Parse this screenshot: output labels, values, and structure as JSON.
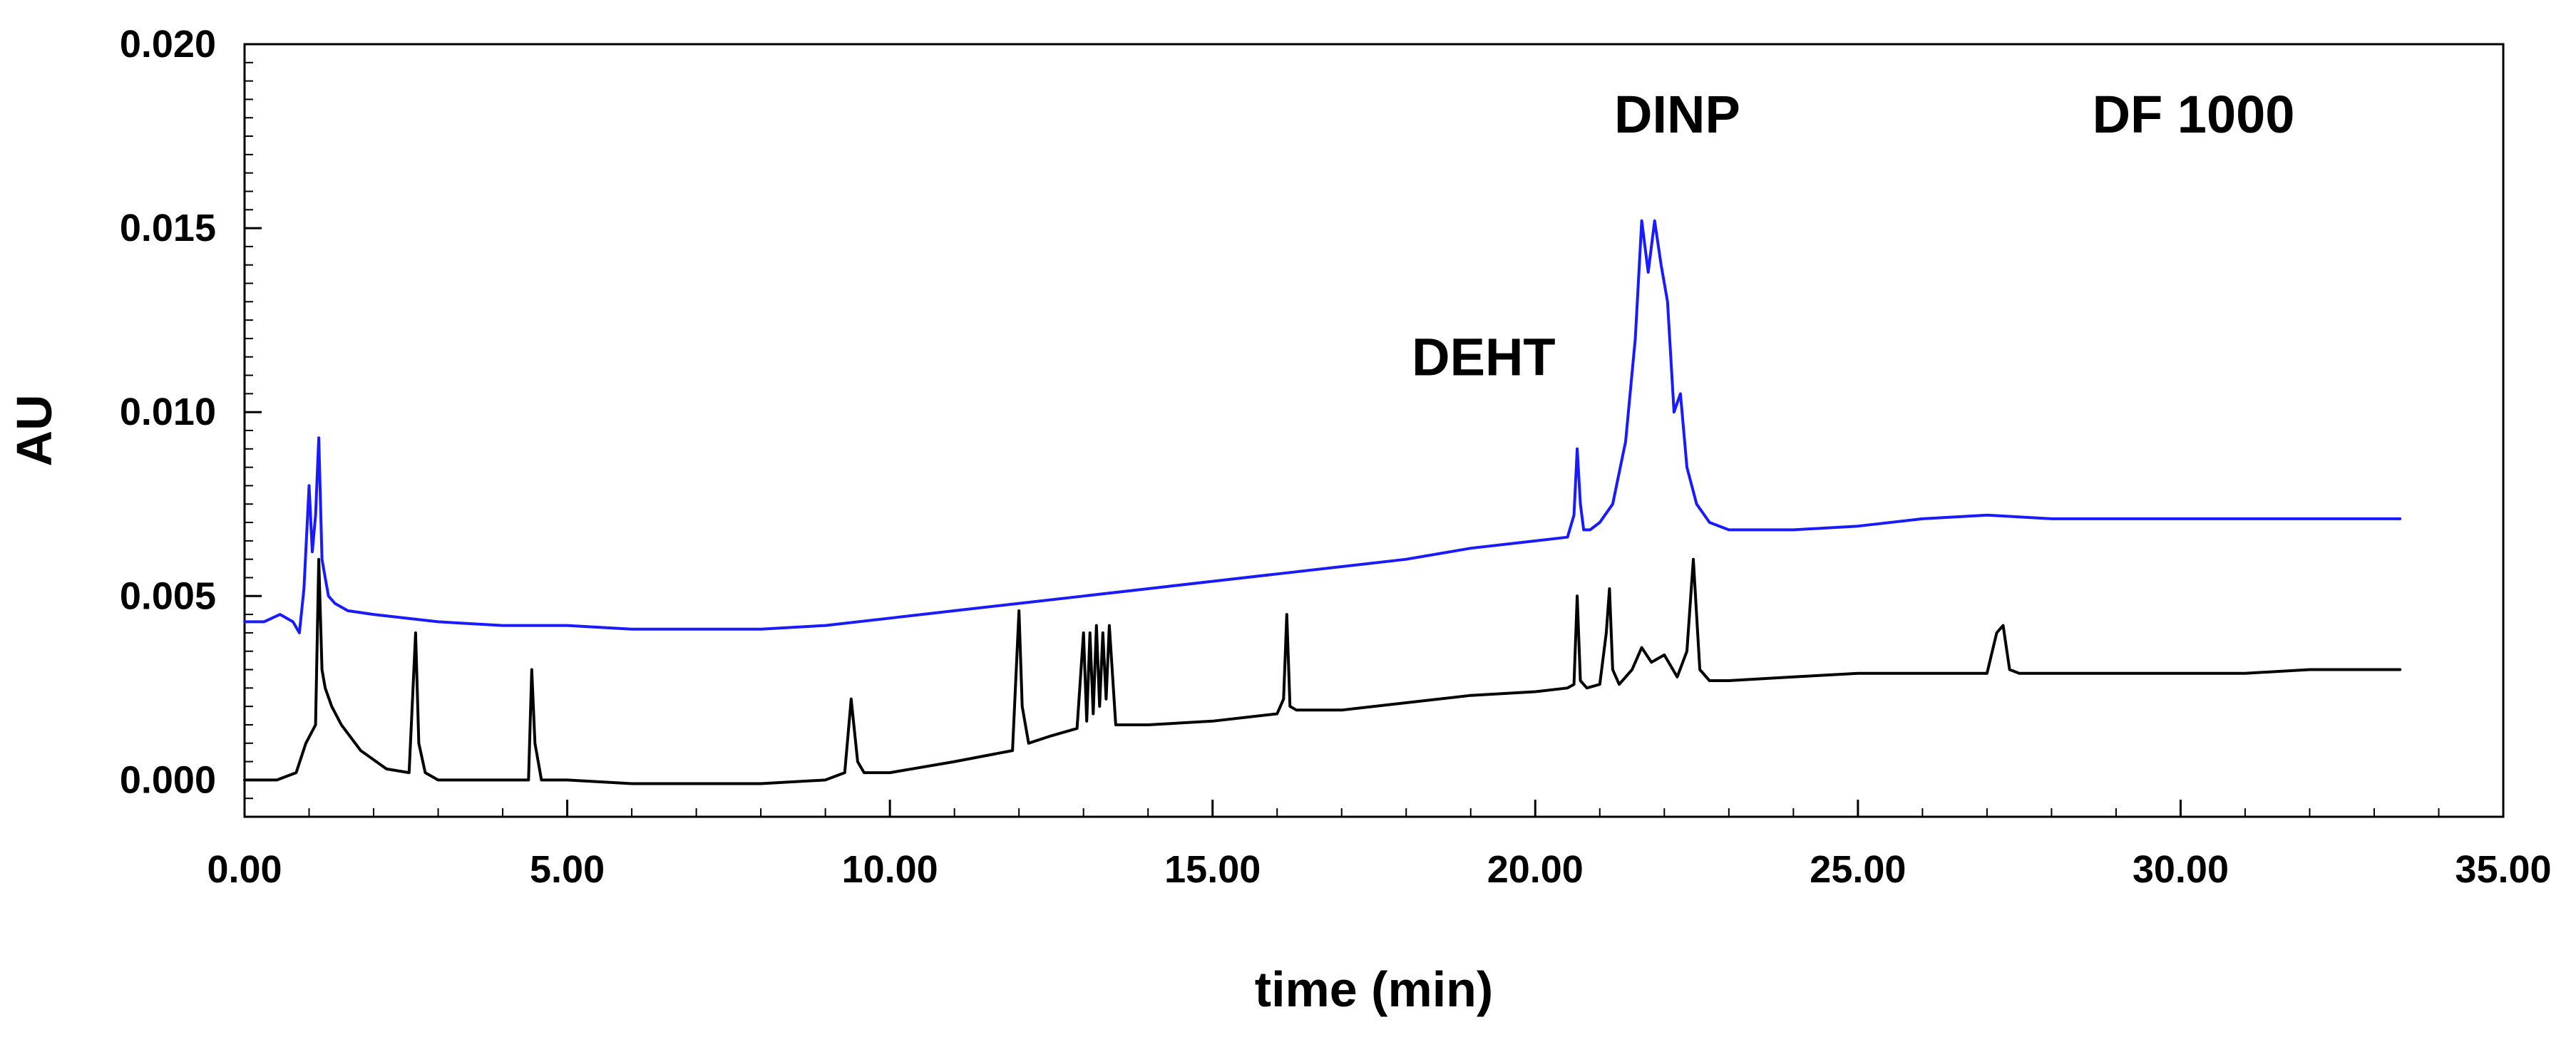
{
  "chart_data": {
    "type": "line",
    "title": "",
    "xlabel": "time (min)",
    "ylabel": "AU",
    "xlim": [
      0,
      35
    ],
    "ylim": [
      -0.001,
      0.02
    ],
    "x_ticks": [
      0,
      5,
      10,
      15,
      20,
      25,
      30,
      35
    ],
    "x_tick_labels": [
      "0.00",
      "5.00",
      "10.00",
      "15.00",
      "20.00",
      "25.00",
      "30.00",
      "35.00"
    ],
    "y_ticks": [
      0,
      0.005,
      0.01,
      0.015,
      0.02
    ],
    "y_tick_labels": [
      "0.000",
      "0.005",
      "0.010",
      "0.015",
      "0.020"
    ],
    "grid": false,
    "legend": "none",
    "annotations": [
      {
        "text": "DEHT",
        "x": 19.2,
        "y": 0.011
      },
      {
        "text": "DINP",
        "x": 22.2,
        "y": 0.0176
      },
      {
        "text": "DF 1000",
        "x": 30.2,
        "y": 0.0176
      }
    ],
    "series": [
      {
        "color": "#1a1aff",
        "x": [
          0.0,
          0.3,
          0.55,
          0.75,
          0.85,
          0.92,
          1.0,
          1.05,
          1.1,
          1.15,
          1.2,
          1.25,
          1.3,
          1.4,
          1.6,
          2.0,
          3.0,
          4.0,
          5.0,
          6.0,
          7.0,
          8.0,
          9.0,
          10.0,
          11.0,
          12.0,
          13.0,
          14.0,
          15.0,
          16.0,
          17.0,
          18.0,
          19.0,
          20.0,
          20.5,
          20.6,
          20.65,
          20.7,
          20.75,
          20.85,
          21.0,
          21.2,
          21.4,
          21.55,
          21.65,
          21.75,
          21.85,
          21.95,
          22.05,
          22.15,
          22.25,
          22.35,
          22.5,
          22.7,
          23.0,
          23.5,
          24.0,
          25.0,
          26.0,
          27.0,
          28.0,
          29.0,
          30.0,
          31.0,
          32.0,
          33.0,
          33.4
        ],
        "y": [
          0.0043,
          0.0043,
          0.0045,
          0.0043,
          0.004,
          0.0052,
          0.008,
          0.0062,
          0.0072,
          0.0093,
          0.006,
          0.0055,
          0.005,
          0.0048,
          0.0046,
          0.0045,
          0.0043,
          0.0042,
          0.0042,
          0.0041,
          0.0041,
          0.0041,
          0.0042,
          0.0044,
          0.0046,
          0.0048,
          0.005,
          0.0052,
          0.0054,
          0.0056,
          0.0058,
          0.006,
          0.0063,
          0.0065,
          0.0066,
          0.0072,
          0.009,
          0.0075,
          0.0068,
          0.0068,
          0.007,
          0.0075,
          0.0092,
          0.012,
          0.0152,
          0.0138,
          0.0152,
          0.014,
          0.013,
          0.01,
          0.0105,
          0.0085,
          0.0075,
          0.007,
          0.0068,
          0.0068,
          0.0068,
          0.0069,
          0.0071,
          0.0072,
          0.0071,
          0.0071,
          0.0071,
          0.0071,
          0.0071,
          0.0071,
          0.0071
        ]
      },
      {
        "color": "#000000",
        "x": [
          0.0,
          0.5,
          0.8,
          0.95,
          1.1,
          1.15,
          1.2,
          1.25,
          1.35,
          1.5,
          1.8,
          2.2,
          2.55,
          2.65,
          2.7,
          2.8,
          3.0,
          4.0,
          4.4,
          4.45,
          4.5,
          4.6,
          5.0,
          6.0,
          7.0,
          8.0,
          9.0,
          9.3,
          9.4,
          9.5,
          9.6,
          10.0,
          11.0,
          11.9,
          12.0,
          12.05,
          12.15,
          12.5,
          12.9,
          13.0,
          13.05,
          13.1,
          13.15,
          13.2,
          13.25,
          13.3,
          13.35,
          13.4,
          13.5,
          14.0,
          15.0,
          16.0,
          16.1,
          16.15,
          16.2,
          16.3,
          17.0,
          18.0,
          19.0,
          20.0,
          20.5,
          20.6,
          20.65,
          20.7,
          20.8,
          21.0,
          21.1,
          21.15,
          21.2,
          21.3,
          21.5,
          21.65,
          21.8,
          22.0,
          22.2,
          22.35,
          22.45,
          22.55,
          22.7,
          23.0,
          24.0,
          25.0,
          26.0,
          27.0,
          27.15,
          27.25,
          27.35,
          27.5,
          28.0,
          29.0,
          30.0,
          31.0,
          32.0,
          33.0,
          33.4
        ],
        "y": [
          0.0,
          0.0,
          0.0002,
          0.001,
          0.0015,
          0.006,
          0.003,
          0.0025,
          0.002,
          0.0015,
          0.0008,
          0.0003,
          0.0002,
          0.004,
          0.001,
          0.0002,
          0.0,
          0.0,
          0.0,
          0.003,
          0.001,
          0.0,
          0.0,
          -0.0001,
          -0.0001,
          -0.0001,
          0.0,
          0.0002,
          0.0022,
          0.0005,
          0.0002,
          0.0002,
          0.0005,
          0.0008,
          0.0046,
          0.002,
          0.001,
          0.0012,
          0.0014,
          0.004,
          0.0016,
          0.004,
          0.0018,
          0.0042,
          0.002,
          0.004,
          0.0022,
          0.0042,
          0.0015,
          0.0015,
          0.0016,
          0.0018,
          0.0022,
          0.0045,
          0.002,
          0.0019,
          0.0019,
          0.0021,
          0.0023,
          0.0024,
          0.0025,
          0.0026,
          0.005,
          0.0027,
          0.0025,
          0.0026,
          0.004,
          0.0052,
          0.003,
          0.0026,
          0.003,
          0.0036,
          0.0032,
          0.0034,
          0.0028,
          0.0035,
          0.006,
          0.003,
          0.0027,
          0.0027,
          0.0028,
          0.0029,
          0.0029,
          0.0029,
          0.004,
          0.0042,
          0.003,
          0.0029,
          0.0029,
          0.0029,
          0.0029,
          0.0029,
          0.003,
          0.003,
          0.003
        ]
      }
    ]
  }
}
